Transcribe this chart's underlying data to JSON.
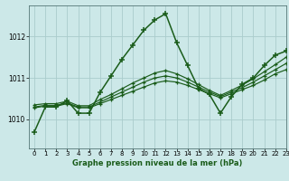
{
  "title": "Graphe pression niveau de la mer (hPa)",
  "bg_color": "#cce8e8",
  "grid_color": "#aacccc",
  "line_color": "#1a5c1a",
  "xlim": [
    -0.5,
    23
  ],
  "ylim": [
    1009.3,
    1012.75
  ],
  "yticks": [
    1010,
    1011,
    1012
  ],
  "xticks": [
    0,
    1,
    2,
    3,
    4,
    5,
    6,
    7,
    8,
    9,
    10,
    11,
    12,
    13,
    14,
    15,
    16,
    17,
    18,
    19,
    20,
    21,
    22,
    23
  ],
  "series": [
    {
      "x": [
        0,
        1,
        2,
        3,
        4,
        5,
        6,
        7,
        8,
        9,
        10,
        11,
        12,
        13,
        14,
        15,
        16,
        17,
        18,
        19,
        20,
        21,
        22,
        23
      ],
      "y": [
        1009.7,
        1010.3,
        1010.3,
        1010.45,
        1010.15,
        1010.15,
        1010.65,
        1011.05,
        1011.45,
        1011.8,
        1012.15,
        1012.4,
        1012.55,
        1011.85,
        1011.3,
        1010.75,
        1010.6,
        1010.15,
        1010.55,
        1010.85,
        1011.0,
        1011.3,
        1011.55,
        1011.65
      ]
    },
    {
      "x": [
        0,
        1,
        2,
        3,
        4,
        5,
        6,
        7,
        8,
        9,
        10,
        11,
        12,
        13,
        14,
        15,
        16,
        17,
        18,
        19,
        20,
        21,
        22,
        23
      ],
      "y": [
        1010.28,
        1010.32,
        1010.32,
        1010.38,
        1010.28,
        1010.28,
        1010.38,
        1010.48,
        1010.58,
        1010.68,
        1010.78,
        1010.88,
        1010.93,
        1010.9,
        1010.82,
        1010.72,
        1010.62,
        1010.52,
        1010.62,
        1010.72,
        1010.82,
        1010.95,
        1011.1,
        1011.2
      ]
    },
    {
      "x": [
        0,
        1,
        2,
        3,
        4,
        5,
        6,
        7,
        8,
        9,
        10,
        11,
        12,
        13,
        14,
        15,
        16,
        17,
        18,
        19,
        20,
        21,
        22,
        23
      ],
      "y": [
        1010.3,
        1010.34,
        1010.34,
        1010.4,
        1010.3,
        1010.3,
        1010.42,
        1010.54,
        1010.66,
        1010.78,
        1010.9,
        1011.0,
        1011.05,
        1011.0,
        1010.9,
        1010.78,
        1010.66,
        1010.55,
        1010.66,
        1010.77,
        1010.9,
        1011.05,
        1011.2,
        1011.35
      ]
    },
    {
      "x": [
        0,
        1,
        2,
        3,
        4,
        5,
        6,
        7,
        8,
        9,
        10,
        11,
        12,
        13,
        14,
        15,
        16,
        17,
        18,
        19,
        20,
        21,
        22,
        23
      ],
      "y": [
        1010.35,
        1010.38,
        1010.38,
        1010.44,
        1010.33,
        1010.33,
        1010.48,
        1010.6,
        1010.74,
        1010.88,
        1011.0,
        1011.12,
        1011.18,
        1011.1,
        1010.98,
        1010.84,
        1010.7,
        1010.58,
        1010.7,
        1010.83,
        1010.98,
        1011.15,
        1011.32,
        1011.5
      ]
    }
  ]
}
